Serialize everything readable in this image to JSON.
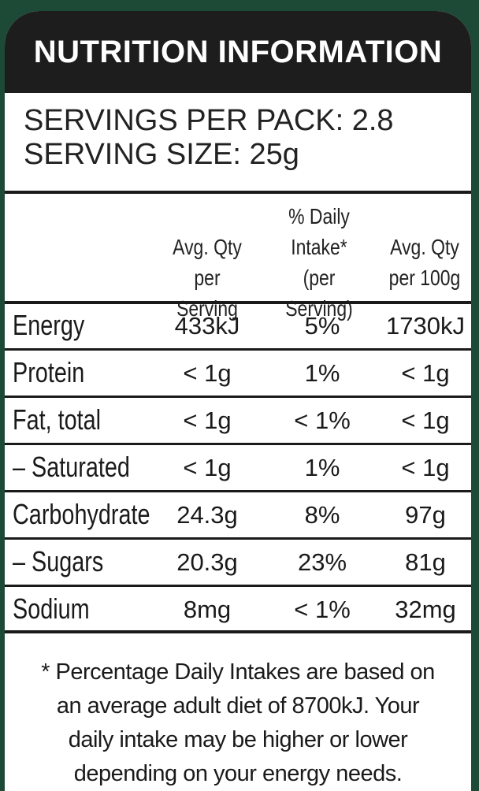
{
  "title": "NUTRITION INFORMATION",
  "servings_per_pack": "SERVINGS PER PACK: 2.8",
  "serving_size": "SERVING SIZE: 25g",
  "columns": [
    [
      "Avg. Qty",
      "per Serving"
    ],
    [
      "% Daily",
      "Intake*",
      "(per Serving)"
    ],
    [
      "Avg. Qty",
      "per 100g"
    ]
  ],
  "rows": [
    {
      "label": "Energy",
      "per_serving": "433kJ",
      "daily": "5%",
      "per_100g": "1730kJ"
    },
    {
      "label": "Protein",
      "per_serving": "< 1g",
      "daily": "1%",
      "per_100g": "< 1g"
    },
    {
      "label": "Fat, total",
      "per_serving": "< 1g",
      "daily": "< 1%",
      "per_100g": "< 1g"
    },
    {
      "label": "– Saturated",
      "per_serving": "< 1g",
      "daily": "1%",
      "per_100g": "< 1g"
    },
    {
      "label": "Carbohydrate",
      "per_serving": "24.3g",
      "daily": "8%",
      "per_100g": "97g"
    },
    {
      "label": "– Sugars",
      "per_serving": "20.3g",
      "daily": "23%",
      "per_100g": "81g"
    },
    {
      "label": "Sodium",
      "per_serving": "8mg",
      "daily": "< 1%",
      "per_100g": "32mg"
    }
  ],
  "footnote": [
    "* Percentage Daily Intakes are based on",
    "an average adult diet of 8700kJ. Your",
    "daily intake may be higher or lower",
    "depending on your energy needs."
  ],
  "colors": {
    "background": "#1d4a36",
    "header": "#1d1d1d",
    "panel": "#ffffff"
  }
}
